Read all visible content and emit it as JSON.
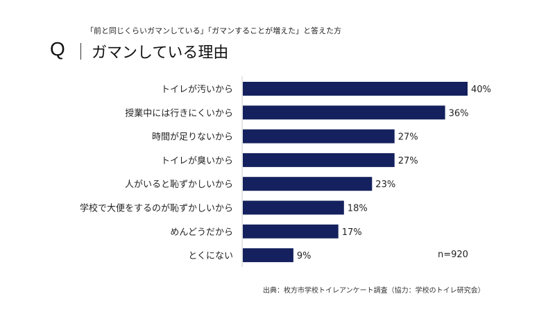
{
  "subtitle": "「前と同じくらいガマンしている」「ガマンすることが増えた」と答えた方",
  "q_label": "Q",
  "title": "ガマンしている理由",
  "note": "n=920",
  "source": "出典：枚方市学校トイレアンケート調査（協力：学校のトイレ研究会）",
  "chart_data": {
    "type": "bar",
    "orientation": "horizontal",
    "categories": [
      "トイレが汚いから",
      "授業中には行きにくいから",
      "時間が足りないから",
      "トイレが臭いから",
      "人がいると恥ずかしいから",
      "学校で大便をするのが恥ずかしいから",
      "めんどうだから",
      "とくにない"
    ],
    "values": [
      40,
      36,
      27,
      27,
      23,
      18,
      17,
      9
    ],
    "labels": [
      "40%",
      "36%",
      "27%",
      "27%",
      "23%",
      "18%",
      "17%",
      "9%"
    ],
    "unit": "%",
    "xlim": [
      0,
      40
    ],
    "grid": false,
    "bar_color": "#14215e"
  }
}
